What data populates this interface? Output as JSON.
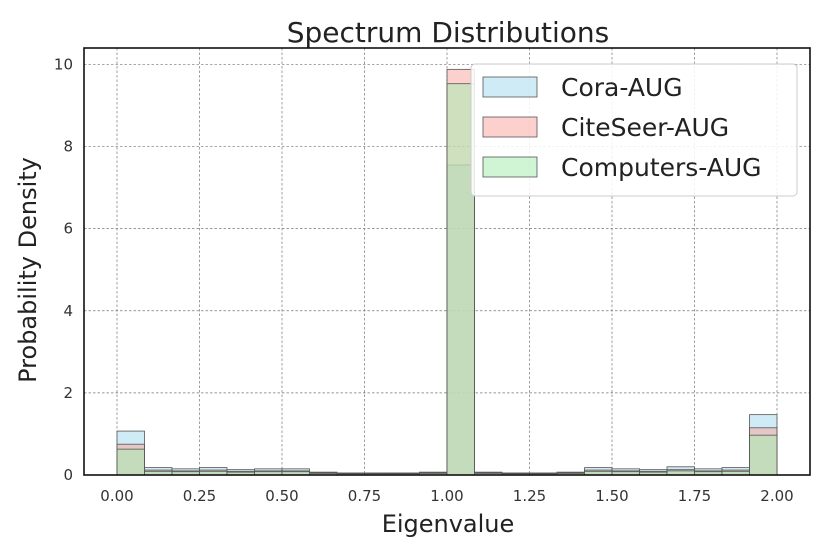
{
  "chart_data": {
    "type": "bar",
    "title": "Spectrum Distributions",
    "xlabel": "Eigenvalue",
    "ylabel": "Probability Density",
    "xlim": [
      -0.1,
      2.1
    ],
    "ylim": [
      0,
      10.4
    ],
    "xticks": [
      "0.00",
      "0.25",
      "0.50",
      "0.75",
      "1.00",
      "1.25",
      "1.50",
      "1.75",
      "2.00"
    ],
    "yticks": [
      "0",
      "2",
      "4",
      "6",
      "8",
      "10"
    ],
    "grid": true,
    "legend_position": "top-right",
    "bin_edges": [
      0.0,
      0.0833,
      0.1667,
      0.25,
      0.3333,
      0.4167,
      0.5,
      0.5833,
      0.6667,
      0.75,
      0.8333,
      0.9167,
      1.0,
      1.0833,
      1.1667,
      1.25,
      1.3333,
      1.4167,
      1.5,
      1.5833,
      1.6667,
      1.75,
      1.8333,
      1.9167,
      2.0
    ],
    "series": [
      {
        "name": "Cora-AUG",
        "color": "#a7dbed",
        "values": [
          1.07,
          0.18,
          0.15,
          0.18,
          0.13,
          0.15,
          0.15,
          0.07,
          0.05,
          0.05,
          0.05,
          0.07,
          7.55,
          0.07,
          0.05,
          0.05,
          0.07,
          0.18,
          0.15,
          0.13,
          0.2,
          0.15,
          0.18,
          1.47
        ]
      },
      {
        "name": "CiteSeer-AUG",
        "color": "#f9a9a3",
        "values": [
          0.75,
          0.12,
          0.1,
          0.12,
          0.09,
          0.1,
          0.1,
          0.05,
          0.04,
          0.04,
          0.04,
          0.05,
          9.88,
          0.05,
          0.04,
          0.04,
          0.05,
          0.12,
          0.1,
          0.09,
          0.13,
          0.1,
          0.12,
          1.15
        ]
      },
      {
        "name": "Computers-AUG",
        "color": "#a8ecb3",
        "values": [
          0.63,
          0.09,
          0.08,
          0.09,
          0.07,
          0.08,
          0.08,
          0.04,
          0.03,
          0.03,
          0.03,
          0.04,
          9.53,
          0.04,
          0.03,
          0.03,
          0.04,
          0.09,
          0.08,
          0.07,
          0.1,
          0.08,
          0.09,
          0.97
        ]
      }
    ]
  }
}
